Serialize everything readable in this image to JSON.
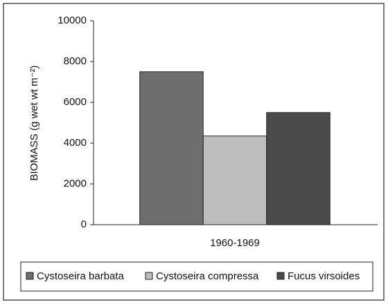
{
  "chart_data": {
    "type": "bar",
    "ylabel": "BIOMASS (g wet wt m⁻²)",
    "categories": [
      "1960-1969"
    ],
    "series": [
      {
        "name": "Cystoseira barbata",
        "color": "#6e6e6e",
        "values": [
          7500
        ]
      },
      {
        "name": "Cystoseira compressa",
        "color": "#bdbdbd",
        "values": [
          4350
        ]
      },
      {
        "name": "Fucus virsoides",
        "color": "#4a4a4a",
        "values": [
          5500
        ]
      }
    ],
    "ylim": [
      0,
      10000
    ],
    "yticks": [
      0,
      2000,
      4000,
      6000,
      8000,
      10000
    ],
    "grid": false,
    "legend": "bottom"
  }
}
